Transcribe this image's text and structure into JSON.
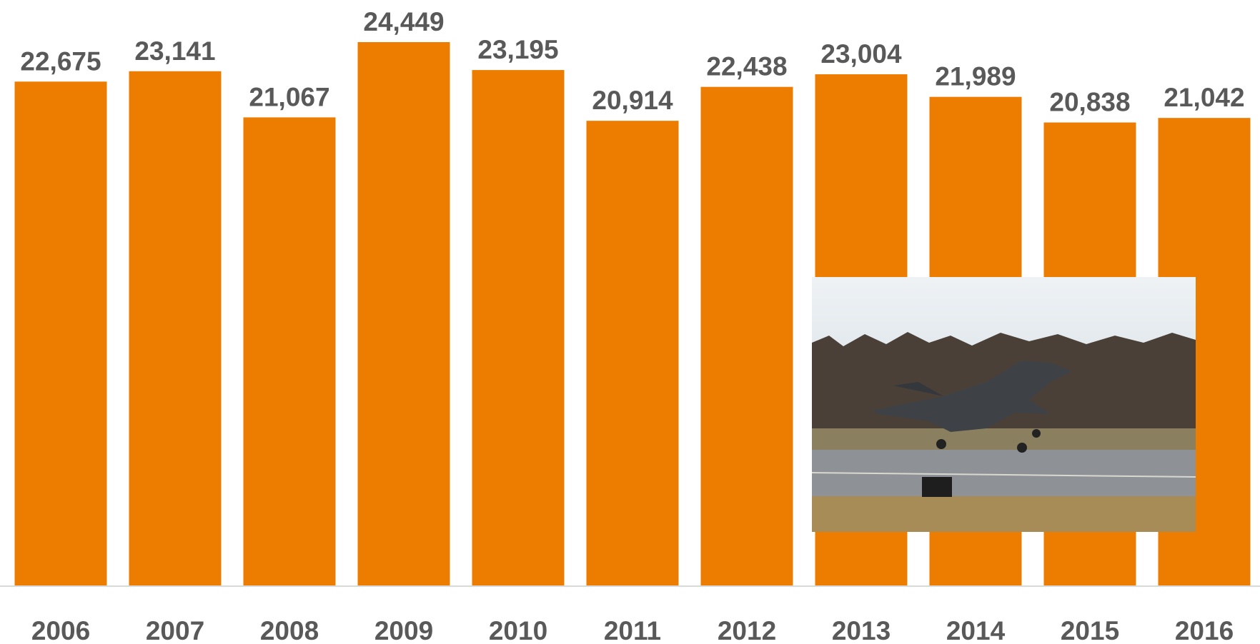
{
  "chart_data": {
    "type": "bar",
    "categories": [
      "2006",
      "2007",
      "2008",
      "2009",
      "2010",
      "2011",
      "2012",
      "2013",
      "2014",
      "2015",
      "2016"
    ],
    "values": [
      22675,
      23141,
      21067,
      24449,
      23195,
      20914,
      22438,
      23004,
      21989,
      20838,
      21042
    ],
    "value_labels": [
      "22,675",
      "23,141",
      "21,067",
      "24,449",
      "23,195",
      "20,914",
      "22,438",
      "23,004",
      "21,989",
      "20,838",
      "21,042"
    ],
    "color": "#ED7D00"
  }
}
